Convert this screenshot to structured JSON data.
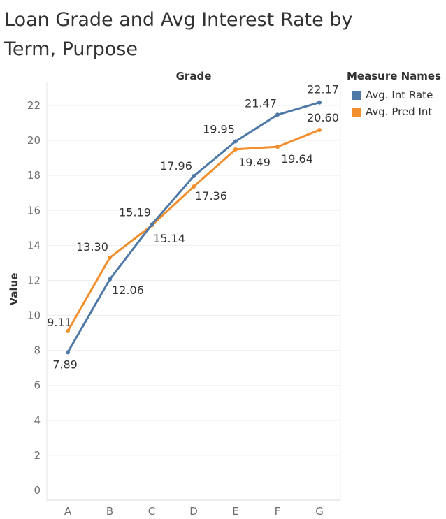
{
  "chart_data": {
    "type": "line",
    "title": "Loan Grade and Avg Interest Rate by Term, Purpose",
    "column_header": "Grade",
    "ylabel": "Value",
    "categories": [
      "A",
      "B",
      "C",
      "D",
      "E",
      "F",
      "G"
    ],
    "ylim": [
      0,
      23
    ],
    "yticks": [
      0,
      2,
      4,
      6,
      8,
      10,
      12,
      14,
      16,
      18,
      20,
      22
    ],
    "grid": true,
    "legend_title": "Measure Names",
    "legend_position": "top-right",
    "series": [
      {
        "name": "Avg. Int Rate",
        "color": "#4e79a7",
        "values": [
          7.89,
          12.06,
          15.19,
          17.96,
          19.95,
          21.47,
          22.17
        ],
        "labels": [
          "7.89",
          "12.06",
          "15.19",
          "17.96",
          "19.95",
          "21.47",
          "22.17"
        ]
      },
      {
        "name": "Avg. Pred Int",
        "color": "#f28e2b",
        "values": [
          9.11,
          13.3,
          15.14,
          17.36,
          19.49,
          19.64,
          20.6
        ],
        "labels": [
          "9.11",
          "13.30",
          "15.14",
          "17.36",
          "19.49",
          "19.64",
          "20.60"
        ]
      }
    ]
  }
}
